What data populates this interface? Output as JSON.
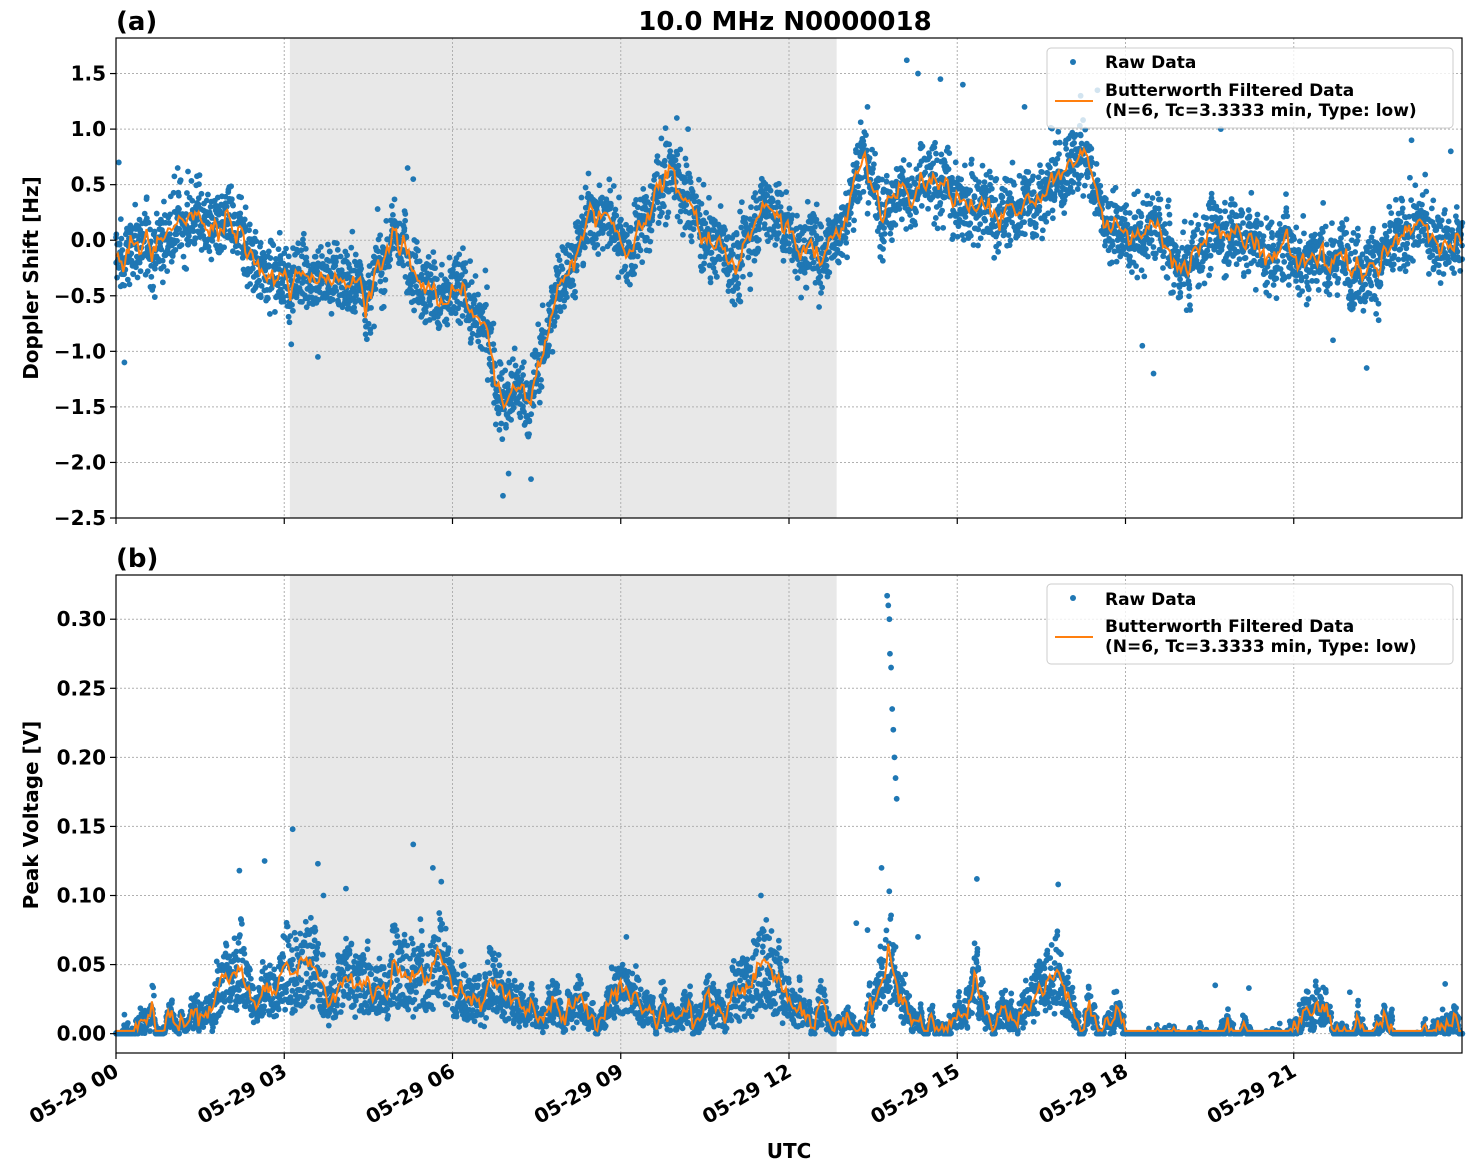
{
  "figure": {
    "title": "10.0 MHz N0000018",
    "xlabel": "UTC"
  },
  "colors": {
    "raw": "#1f77b4",
    "filtered": "#ff7f0e",
    "shade": "#e8e8e8",
    "grid": "#b0b0b0"
  },
  "legend": {
    "raw_label": "Raw Data",
    "filtered_line1": "Butterworth Filtered Data",
    "filtered_line2": "(N=6, Tc=3.3333 min, Type: low)",
    "placement": "upper right"
  },
  "chart_data": [
    {
      "type": "scatter",
      "panel_label": "(a)",
      "ylabel": "Doppler Shift [Hz]",
      "xlim_hours": [
        0,
        24
      ],
      "ylim": [
        -2.5,
        1.82
      ],
      "yticks": [
        -2.5,
        -2.0,
        -1.5,
        -1.0,
        -0.5,
        0.0,
        0.5,
        1.0,
        1.5
      ],
      "ytick_labels": [
        "−2.5",
        "−2.0",
        "−1.5",
        "−1.0",
        "−0.5",
        "0.0",
        "0.5",
        "1.0",
        "1.5"
      ],
      "grid": true,
      "shaded_interval_hours": [
        3.1,
        12.85
      ],
      "series": [
        {
          "name": "Raw Data",
          "mode": "markers",
          "spread": 0.36,
          "x_hours": [
            0,
            0.5,
            1,
            1.5,
            1.9,
            2.2,
            2.6,
            3.0,
            3.5,
            4.0,
            4.5,
            5.0,
            5.3,
            5.6,
            6.0,
            6.3,
            6.6,
            6.9,
            7.1,
            7.4,
            7.7,
            8.0,
            8.4,
            8.8,
            9.2,
            9.6,
            9.8,
            10.0,
            10.3,
            10.6,
            11.0,
            11.3,
            11.5,
            11.8,
            12.2,
            12.6,
            13.0,
            13.3,
            13.6,
            14.0,
            14.2,
            14.6,
            15.0,
            15.5,
            16.0,
            16.4,
            16.7,
            17.0,
            17.3,
            17.7,
            18.0,
            18.5,
            19.0,
            19.5,
            20.0,
            20.5,
            21.0,
            21.5,
            22.0,
            22.5,
            23.0,
            23.5,
            24.0
          ],
          "values": [
            -0.2,
            -0.1,
            -0.05,
            0.05,
            0.1,
            -0.05,
            -0.25,
            -0.3,
            -0.2,
            -0.35,
            -0.4,
            0.05,
            -0.3,
            -0.35,
            -0.5,
            -0.6,
            -0.9,
            -1.5,
            -1.3,
            -1.5,
            -0.8,
            -0.2,
            0.3,
            0.2,
            0.0,
            0.4,
            0.6,
            0.5,
            0.3,
            0.0,
            -0.2,
            0.1,
            0.4,
            0.3,
            -0.1,
            -0.05,
            0.3,
            0.7,
            0.4,
            0.6,
            0.4,
            0.5,
            0.4,
            0.3,
            0.2,
            0.4,
            0.6,
            0.5,
            0.7,
            0.1,
            0.0,
            0.05,
            -0.2,
            0.0,
            0.1,
            0.0,
            -0.1,
            -0.05,
            -0.1,
            -0.2,
            0.0,
            0.1,
            -0.1
          ],
          "outliers": [
            [
              0.05,
              0.7
            ],
            [
              0.15,
              -1.1
            ],
            [
              1.1,
              0.65
            ],
            [
              3.6,
              -1.05
            ],
            [
              5.2,
              0.65
            ],
            [
              5.3,
              0.55
            ],
            [
              6.9,
              -2.3
            ],
            [
              7.0,
              -2.1
            ],
            [
              7.4,
              -2.15
            ],
            [
              10.0,
              1.1
            ],
            [
              10.2,
              1.0
            ],
            [
              13.4,
              1.2
            ],
            [
              14.1,
              1.62
            ],
            [
              14.3,
              1.5
            ],
            [
              14.7,
              1.45
            ],
            [
              15.1,
              1.4
            ],
            [
              16.2,
              1.2
            ],
            [
              17.2,
              1.3
            ],
            [
              17.5,
              1.35
            ],
            [
              18.3,
              -0.95
            ],
            [
              18.5,
              -1.2
            ],
            [
              19.7,
              1.0
            ],
            [
              21.7,
              -0.9
            ],
            [
              22.3,
              -1.15
            ],
            [
              23.1,
              0.9
            ],
            [
              23.8,
              0.8
            ]
          ]
        },
        {
          "name": "Butterworth Filtered Data\n(N=6, Tc=3.3333 min, Type: low)",
          "mode": "line"
        }
      ]
    },
    {
      "type": "scatter",
      "panel_label": "(b)",
      "ylabel": "Peak Voltage [V]",
      "xlim_hours": [
        0,
        24
      ],
      "ylim": [
        -0.014,
        0.332
      ],
      "yticks": [
        0.0,
        0.05,
        0.1,
        0.15,
        0.2,
        0.25,
        0.3
      ],
      "ytick_labels": [
        "0.00",
        "0.05",
        "0.10",
        "0.15",
        "0.20",
        "0.25",
        "0.30"
      ],
      "xticks_hours": [
        0,
        3,
        6,
        9,
        12,
        15,
        18,
        21
      ],
      "xtick_labels": [
        "05-29 00",
        "05-29 03",
        "05-29 06",
        "05-29 09",
        "05-29 12",
        "05-29 15",
        "05-29 18",
        "05-29 21"
      ],
      "grid": true,
      "shaded_interval_hours": [
        3.1,
        12.85
      ],
      "series": [
        {
          "name": "Raw Data",
          "mode": "markers",
          "spread": 0.03,
          "x_hours": [
            0,
            1,
            1.6,
            2.0,
            2.2,
            2.5,
            2.8,
            3.0,
            3.2,
            3.5,
            3.8,
            4.2,
            4.6,
            5.0,
            5.3,
            5.7,
            5.9,
            6.2,
            6.6,
            7.0,
            7.5,
            8.0,
            8.5,
            8.9,
            9.3,
            9.8,
            10.3,
            10.8,
            11.2,
            11.5,
            11.8,
            12.2,
            12.6,
            12.9,
            13.2,
            13.4,
            13.6,
            13.8,
            14.0,
            14.3,
            14.6,
            15.0,
            15.3,
            15.6,
            16.0,
            16.4,
            16.8,
            17.2,
            17.6,
            18.0,
            18.6,
            19.2,
            19.6,
            20.0,
            20.6,
            21.2,
            21.8,
            22.4,
            23.0,
            23.5,
            24.0
          ],
          "values": [
            0.005,
            0.008,
            0.012,
            0.02,
            0.035,
            0.025,
            0.04,
            0.045,
            0.05,
            0.045,
            0.04,
            0.03,
            0.035,
            0.05,
            0.035,
            0.055,
            0.05,
            0.03,
            0.022,
            0.017,
            0.016,
            0.02,
            0.022,
            0.028,
            0.025,
            0.022,
            0.02,
            0.025,
            0.035,
            0.04,
            0.03,
            0.018,
            0.01,
            0.006,
            0.008,
            0.03,
            0.04,
            0.06,
            0.025,
            0.018,
            0.012,
            0.015,
            0.04,
            0.018,
            0.014,
            0.015,
            0.04,
            0.012,
            0.007,
            0.005,
            0.005,
            0.006,
            0.007,
            0.006,
            0.005,
            0.006,
            0.006,
            0.005,
            0.006,
            0.01,
            0.015
          ],
          "outliers": [
            [
              2.2,
              0.118
            ],
            [
              2.65,
              0.125
            ],
            [
              3.15,
              0.148
            ],
            [
              3.6,
              0.123
            ],
            [
              3.7,
              0.1
            ],
            [
              4.1,
              0.105
            ],
            [
              5.3,
              0.137
            ],
            [
              5.65,
              0.12
            ],
            [
              5.8,
              0.11
            ],
            [
              9.1,
              0.07
            ],
            [
              11.5,
              0.1
            ],
            [
              13.2,
              0.08
            ],
            [
              13.4,
              0.075
            ],
            [
              13.65,
              0.12
            ],
            [
              13.75,
              0.317
            ],
            [
              13.77,
              0.31
            ],
            [
              13.79,
              0.3
            ],
            [
              13.8,
              0.275
            ],
            [
              13.82,
              0.265
            ],
            [
              13.84,
              0.235
            ],
            [
              13.86,
              0.22
            ],
            [
              13.88,
              0.2
            ],
            [
              13.9,
              0.185
            ],
            [
              13.92,
              0.17
            ],
            [
              14.3,
              0.07
            ],
            [
              15.35,
              0.112
            ],
            [
              16.8,
              0.108
            ],
            [
              17.8,
              0.03
            ],
            [
              19.6,
              0.035
            ],
            [
              20.2,
              0.033
            ],
            [
              22.0,
              0.03
            ],
            [
              23.7,
              0.036
            ]
          ]
        },
        {
          "name": "Butterworth Filtered Data\n(N=6, Tc=3.3333 min, Type: low)",
          "mode": "line"
        }
      ]
    }
  ]
}
